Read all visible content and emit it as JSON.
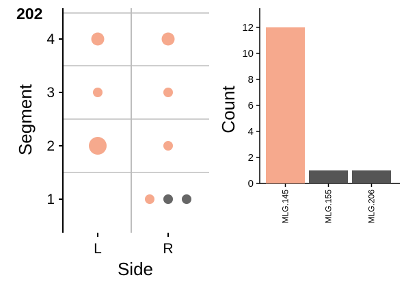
{
  "chart_data": [
    {
      "type": "scatter",
      "title": "202",
      "xlabel": "Side",
      "ylabel": "Segment",
      "x_categories": [
        "L",
        "R"
      ],
      "y_ticks": [
        "1",
        "2",
        "3",
        "4"
      ],
      "grid": true,
      "points": [
        {
          "side": "L",
          "segment": 4,
          "size": 2,
          "color": "#f6a98d"
        },
        {
          "side": "R",
          "segment": 4,
          "size": 2,
          "color": "#f6a98d"
        },
        {
          "side": "L",
          "segment": 3,
          "size": 1,
          "color": "#f6a98d"
        },
        {
          "side": "R",
          "segment": 3,
          "size": 1,
          "color": "#f6a98d"
        },
        {
          "side": "L",
          "segment": 2,
          "size": 3,
          "color": "#f6a98d"
        },
        {
          "side": "R",
          "segment": 2,
          "size": 1,
          "color": "#f6a98d"
        },
        {
          "side": "R",
          "segment": 1,
          "offset": -1,
          "size": 1,
          "color": "#f6a98d"
        },
        {
          "side": "R",
          "segment": 1,
          "offset": 0,
          "size": 1,
          "color": "#666666"
        },
        {
          "side": "R",
          "segment": 1,
          "offset": 1,
          "size": 1,
          "color": "#666666"
        }
      ]
    },
    {
      "type": "bar",
      "ylabel": "Count",
      "categories": [
        "MLG.145",
        "MLG.155",
        "MLG.206"
      ],
      "values": [
        12,
        1,
        1
      ],
      "colors": [
        "#f6a98d",
        "#555555",
        "#555555"
      ],
      "ylim": [
        0,
        13
      ],
      "y_ticks": [
        0,
        2,
        4,
        6,
        8,
        10,
        12
      ],
      "grid": false
    }
  ]
}
